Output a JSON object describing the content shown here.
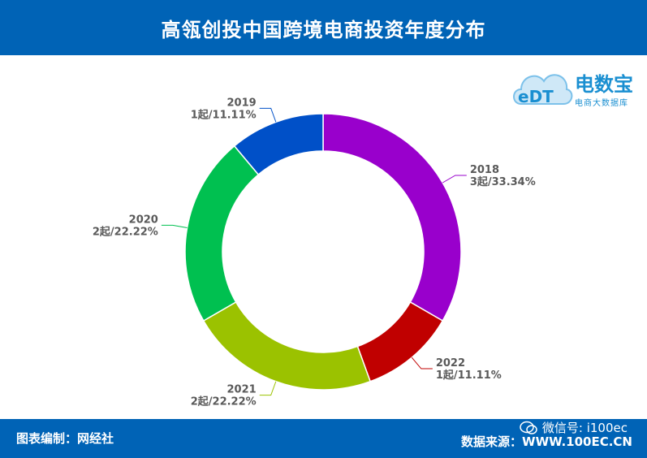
{
  "header": {
    "title": "高瓴创投中国跨境电商投资年度分布"
  },
  "logo": {
    "brand": "电数宝",
    "sub": "电商大数据库",
    "mark": "eDT"
  },
  "footer": {
    "left": "图表编制：网经社",
    "right": "数据来源：WWW.100EC.CN",
    "wechat": "微信号: i100ec"
  },
  "chart_data": {
    "type": "pie",
    "style": "donut",
    "title": "高瓴创投中国跨境电商投资年度分布",
    "start_angle_deg": 90,
    "direction": "clockwise",
    "slices": [
      {
        "label": "2018",
        "value": 3,
        "text": "3起/33.34%",
        "color": "#9900cc"
      },
      {
        "label": "2022",
        "value": 1,
        "text": "1起/11.11%",
        "color": "#c00000"
      },
      {
        "label": "2021",
        "value": 2,
        "text": "2起/22.22%",
        "color": "#9bc200"
      },
      {
        "label": "2020",
        "value": 2,
        "text": "2起/22.22%",
        "color": "#00c050"
      },
      {
        "label": "2019",
        "value": 1,
        "text": "1起/11.11%",
        "color": "#0050c8"
      }
    ]
  }
}
